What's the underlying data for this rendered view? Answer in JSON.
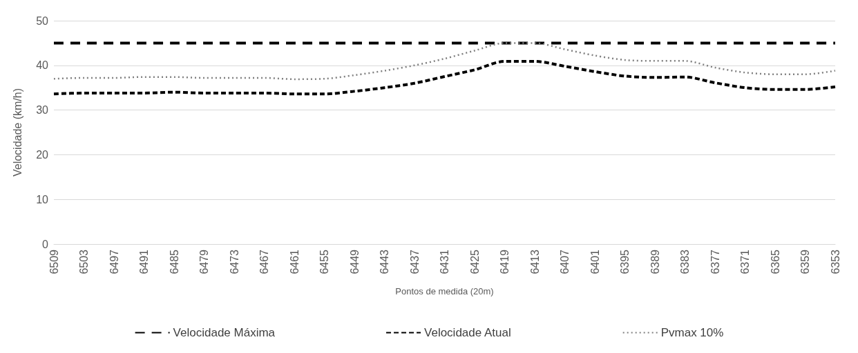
{
  "chart_data": {
    "type": "line",
    "xlabel": "Pontos de medida (20m)",
    "ylabel": "Velocidade (km/h)",
    "categories": [
      "6509",
      "6503",
      "6497",
      "6491",
      "6485",
      "6479",
      "6473",
      "6467",
      "6461",
      "6455",
      "6449",
      "6443",
      "6437",
      "6431",
      "6425",
      "6419",
      "6413",
      "6407",
      "6401",
      "6395",
      "6389",
      "6383",
      "6377",
      "6371",
      "6365",
      "6359",
      "6353"
    ],
    "series": [
      {
        "name": "Velocidade Máxima",
        "color": "#000000",
        "line_style": "dashed",
        "values": [
          45,
          45,
          45,
          45,
          45,
          45,
          45,
          45,
          45,
          45,
          45,
          45,
          45,
          45,
          45,
          45,
          45,
          45,
          45,
          45,
          45,
          45,
          45,
          45,
          45,
          45,
          45
        ]
      },
      {
        "name": "Velocidade Atual",
        "color": "#000000",
        "line_style": "dashed",
        "values": [
          33.6,
          33.8,
          33.8,
          33.8,
          34,
          33.8,
          33.8,
          33.8,
          33.6,
          33.6,
          34.2,
          35,
          36,
          37.5,
          39,
          40.9,
          40.9,
          39.8,
          38.6,
          37.6,
          37.3,
          37.4,
          36.1,
          35,
          34.6,
          34.6,
          35.2
        ]
      },
      {
        "name": "Pvmax 10%",
        "color": "#7f7f7f",
        "line_style": "dotted",
        "values": [
          37,
          37.2,
          37.2,
          37.4,
          37.4,
          37.2,
          37.2,
          37.2,
          36.9,
          37,
          37.8,
          38.8,
          40,
          41.5,
          43.3,
          45,
          45,
          43.6,
          42.2,
          41.2,
          41,
          41,
          39.5,
          38.4,
          38,
          38,
          38.8
        ]
      }
    ],
    "ylim": [
      0,
      50
    ],
    "yticks": [
      0,
      10,
      20,
      30,
      40,
      50
    ],
    "grid": "y",
    "legend": "bottom",
    "marker": "none"
  }
}
